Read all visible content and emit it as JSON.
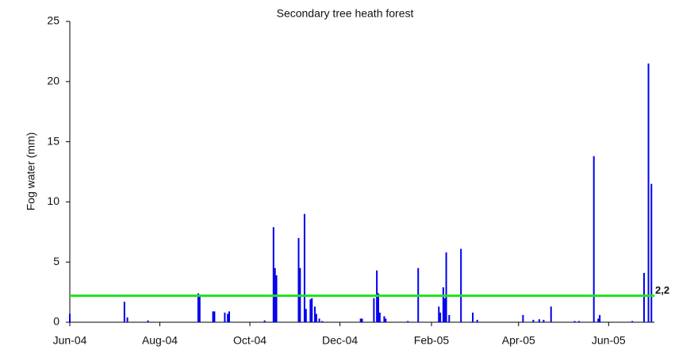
{
  "chart_data": {
    "type": "bar",
    "title": "Secondary tree heath forest",
    "ylabel": "Fog water (mm)",
    "color": "#0000ee",
    "xlim": [
      0,
      396
    ],
    "xticks": [
      {
        "value": 0,
        "label": "Jun-04"
      },
      {
        "value": 61,
        "label": "Aug-04"
      },
      {
        "value": 122,
        "label": "Oct-04"
      },
      {
        "value": 183,
        "label": "Dec-04"
      },
      {
        "value": 245,
        "label": "Feb-05"
      },
      {
        "value": 304,
        "label": "Apr-05"
      },
      {
        "value": 365,
        "label": "Jun-05"
      }
    ],
    "ylim": [
      0,
      25
    ],
    "yticks": [
      0,
      5,
      10,
      15,
      20,
      25
    ],
    "grid": false,
    "x": [
      0,
      37,
      39,
      53,
      87,
      88,
      97,
      98,
      105,
      107,
      108,
      132,
      138,
      139,
      140,
      155,
      156,
      159,
      160,
      163,
      164,
      166,
      167,
      169,
      171,
      197,
      198,
      206,
      208,
      209,
      210,
      213,
      214,
      229,
      236,
      250,
      251,
      253,
      254,
      255,
      257,
      265,
      273,
      276,
      307,
      314,
      318,
      321,
      326,
      342,
      345,
      355,
      358,
      359,
      381,
      389,
      392,
      394
    ],
    "values": [
      0.7,
      1.7,
      0.4,
      0.15,
      2.4,
      2.3,
      0.9,
      0.9,
      0.8,
      0.7,
      0.9,
      0.15,
      7.9,
      4.5,
      3.9,
      7.0,
      4.5,
      9.0,
      1.1,
      1.9,
      2.0,
      1.3,
      0.7,
      0.3,
      0.1,
      0.3,
      0.3,
      2.0,
      4.3,
      2.4,
      0.8,
      0.5,
      0.3,
      0.1,
      4.5,
      1.3,
      0.8,
      2.9,
      2.0,
      5.8,
      0.6,
      6.1,
      0.8,
      0.2,
      0.6,
      0.2,
      0.25,
      0.2,
      1.3,
      0.1,
      0.1,
      13.8,
      0.3,
      0.6,
      0.1,
      4.1,
      21.5,
      11.5
    ],
    "threshold": {
      "value": 2.2,
      "label": "2,2",
      "color": "#22e022"
    }
  }
}
